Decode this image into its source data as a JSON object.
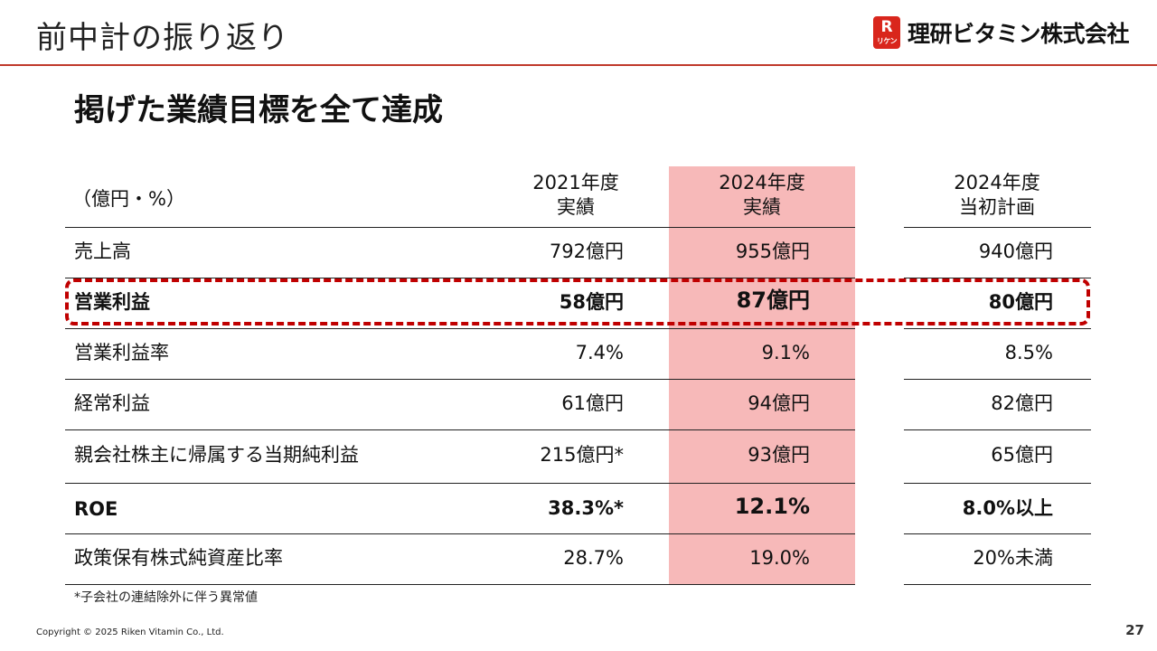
{
  "header": {
    "title": "前中計の振り返り",
    "logo_mark_letter": "R",
    "logo_mark_kana": "リケン",
    "logo_text": "理研ビタミン株式会社"
  },
  "headline": "掲げた業績目標を全て達成",
  "table": {
    "unit_label": "（億円・%）",
    "columns": [
      {
        "line1": "2021年度",
        "line2": "実績"
      },
      {
        "line1": "2024年度",
        "line2": "実績"
      },
      {
        "line1": "2024年度",
        "line2": "当初計画"
      }
    ],
    "highlight_color": "#f7b9b9",
    "rows": [
      {
        "label": "売上高",
        "values": [
          "792億円",
          "955億円",
          "940億円"
        ],
        "bold": false
      },
      {
        "label": "営業利益",
        "values": [
          "58億円",
          "87億円",
          "80億円"
        ],
        "bold": true
      },
      {
        "label": "営業利益率",
        "values": [
          "7.4%",
          "9.1%",
          "8.5%"
        ],
        "bold": false
      },
      {
        "label": "経常利益",
        "values": [
          "61億円",
          "94億円",
          "82億円"
        ],
        "bold": false
      },
      {
        "label": "親会社株主に帰属する当期純利益",
        "values": [
          "215億円*",
          "93億円",
          "65億円"
        ],
        "bold": false
      },
      {
        "label": "ROE",
        "values": [
          "38.3%*",
          "12.1%",
          "8.0%以上"
        ],
        "bold": true
      },
      {
        "label": "政策保有株式純資産比率",
        "values": [
          "28.7%",
          "19.0%",
          "20%未満"
        ],
        "bold": false
      }
    ]
  },
  "footnote": "*子会社の連結除外に伴う異常値",
  "footer": {
    "copyright": "Copyright © 2025 Riken Vitamin Co., Ltd.",
    "page_number": "27"
  },
  "colors": {
    "accent_red": "#c00000",
    "title_rule": "#c0392b"
  }
}
